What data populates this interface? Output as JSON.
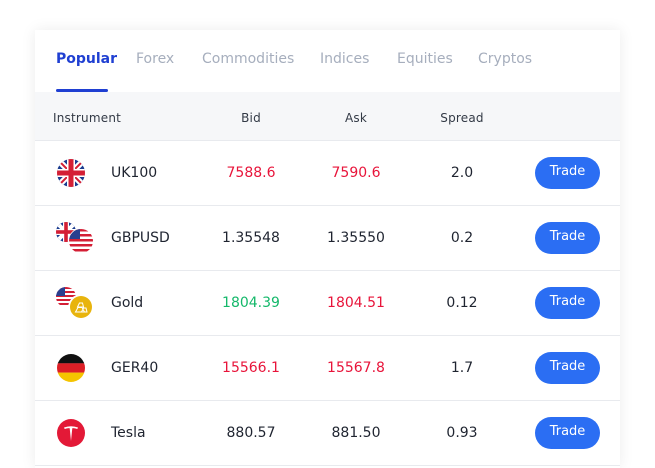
{
  "tabs": [
    {
      "label": "Popular",
      "active": true
    },
    {
      "label": "Forex"
    },
    {
      "label": "Commodities"
    },
    {
      "label": "Indices"
    },
    {
      "label": "Equities"
    },
    {
      "label": "Cryptos"
    }
  ],
  "columns": {
    "instrument": "Instrument",
    "bid": "Bid",
    "ask": "Ask",
    "spread": "Spread"
  },
  "colors": {
    "accent": "#1f3fd2",
    "button": "#2b6ef3",
    "down": "#e8143a",
    "up": "#14b86a",
    "neutral": "#1f2430"
  },
  "rows": [
    {
      "name": "UK100",
      "icon": "uk-flag-icon",
      "bid": "7588.6",
      "ask": "7590.6",
      "spread": "2.0",
      "bid_color": "down",
      "ask_color": "down",
      "action": "Trade"
    },
    {
      "name": "GBPUSD",
      "icon": "gbp-usd-flags-icon",
      "bid": "1.35548",
      "ask": "1.35550",
      "spread": "0.2",
      "bid_color": "neutral",
      "ask_color": "neutral",
      "action": "Trade"
    },
    {
      "name": "Gold",
      "icon": "usd-gold-icon",
      "bid": "1804.39",
      "ask": "1804.51",
      "spread": "0.12",
      "bid_color": "up",
      "ask_color": "down",
      "action": "Trade"
    },
    {
      "name": "GER40",
      "icon": "germany-flag-icon",
      "bid": "15566.1",
      "ask": "15567.8",
      "spread": "1.7",
      "bid_color": "down",
      "ask_color": "down",
      "action": "Trade"
    },
    {
      "name": "Tesla",
      "icon": "tesla-logo-icon",
      "bid": "880.57",
      "ask": "881.50",
      "spread": "0.93",
      "bid_color": "neutral",
      "ask_color": "neutral",
      "action": "Trade"
    }
  ]
}
